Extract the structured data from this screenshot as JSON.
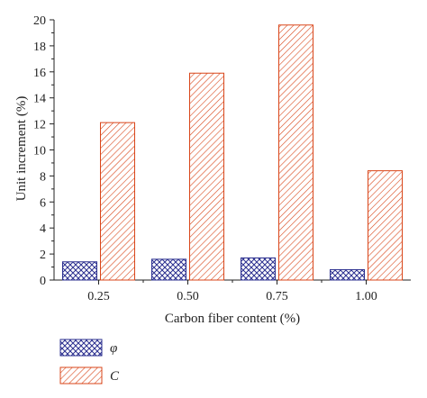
{
  "chart_data": {
    "type": "bar",
    "categories": [
      "0.25",
      "0.50",
      "0.75",
      "1.00"
    ],
    "series": [
      {
        "name": "φ",
        "values": [
          1.4,
          1.6,
          1.7,
          0.8
        ],
        "color": "#2b2f8f",
        "pattern": "crosshatch"
      },
      {
        "name": "C",
        "values": [
          12.1,
          15.9,
          19.6,
          8.4
        ],
        "color": "#d9461a",
        "pattern": "diagonal"
      }
    ],
    "xlabel": "Carbon fiber content (%)",
    "ylabel": "Unit increment (%)",
    "ylim": [
      0,
      20
    ],
    "yticks": [
      "0",
      "2",
      "4",
      "6",
      "8",
      "10",
      "12",
      "14",
      "16",
      "18",
      "20"
    ],
    "grid": false,
    "legend_position": "bottom-left"
  }
}
